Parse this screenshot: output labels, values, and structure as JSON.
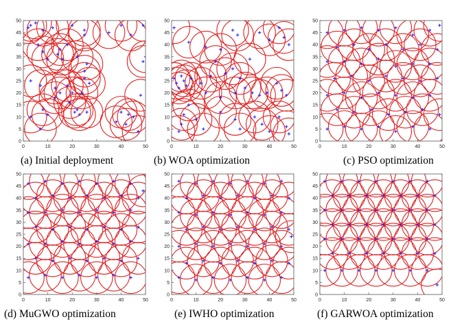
{
  "figure": {
    "node_color": "#1a1aff",
    "circle_color": "#e02020",
    "sensing_radius": 6.5
  },
  "chart_data": [
    {
      "type": "scatter",
      "caption": "(a) Initial deployment",
      "xlim": [
        0,
        50
      ],
      "ylim": [
        0,
        50
      ],
      "xticks": [
        "0",
        "10",
        "20",
        "30",
        "40",
        "50"
      ],
      "yticks": [
        "0",
        "5",
        "10",
        "15",
        "20",
        "25",
        "30",
        "35",
        "40",
        "45",
        "50"
      ],
      "points": [
        [
          2,
          47
        ],
        [
          3,
          48
        ],
        [
          5,
          49
        ],
        [
          8,
          46
        ],
        [
          12,
          47
        ],
        [
          20,
          48
        ],
        [
          25,
          46
        ],
        [
          25,
          44
        ],
        [
          35,
          45
        ],
        [
          40,
          48
        ],
        [
          44,
          44
        ],
        [
          49,
          48
        ],
        [
          6,
          40
        ],
        [
          8,
          37
        ],
        [
          10,
          34
        ],
        [
          14,
          36
        ],
        [
          15,
          38
        ],
        [
          16,
          34
        ],
        [
          18,
          40
        ],
        [
          22,
          35
        ],
        [
          26,
          32
        ],
        [
          25,
          29
        ],
        [
          25,
          26
        ],
        [
          27,
          24
        ],
        [
          3,
          25
        ],
        [
          7,
          23
        ],
        [
          13,
          22
        ],
        [
          15,
          20
        ],
        [
          18,
          23
        ],
        [
          20,
          20
        ],
        [
          24,
          20
        ],
        [
          13,
          18
        ],
        [
          19,
          16
        ],
        [
          8,
          13
        ],
        [
          3,
          10
        ],
        [
          7,
          5
        ],
        [
          10,
          11
        ],
        [
          21,
          12
        ],
        [
          22,
          13
        ],
        [
          23,
          11
        ],
        [
          26,
          12
        ],
        [
          38,
          8
        ],
        [
          40,
          12
        ],
        [
          42,
          7
        ],
        [
          43,
          11
        ],
        [
          45,
          10
        ],
        [
          47,
          4
        ],
        [
          48,
          19
        ],
        [
          49,
          33
        ],
        [
          50,
          35
        ]
      ]
    },
    {
      "type": "scatter",
      "caption": "(b) WOA optimization",
      "xlim": [
        0,
        50
      ],
      "ylim": [
        0,
        50
      ],
      "xticks": [
        "0",
        "10",
        "20",
        "30",
        "40",
        "50"
      ],
      "yticks": [
        "0",
        "5",
        "10",
        "15",
        "20",
        "25",
        "30",
        "35",
        "40",
        "45",
        "50"
      ],
      "points": [
        [
          1,
          47
        ],
        [
          7,
          41
        ],
        [
          14,
          39
        ],
        [
          20,
          38
        ],
        [
          25,
          46
        ],
        [
          27,
          44
        ],
        [
          36,
          45
        ],
        [
          40,
          42
        ],
        [
          44,
          47
        ],
        [
          46,
          43
        ],
        [
          48,
          40
        ],
        [
          1,
          26
        ],
        [
          2,
          24
        ],
        [
          3,
          22
        ],
        [
          4,
          27
        ],
        [
          5,
          25
        ],
        [
          6,
          23
        ],
        [
          8,
          26
        ],
        [
          12,
          24
        ],
        [
          16,
          27
        ],
        [
          22,
          28
        ],
        [
          25,
          30
        ],
        [
          28,
          26
        ],
        [
          30,
          22
        ],
        [
          33,
          20
        ],
        [
          36,
          19
        ],
        [
          39,
          20
        ],
        [
          43,
          24
        ],
        [
          45,
          21
        ],
        [
          47,
          19
        ],
        [
          26,
          20
        ],
        [
          20,
          18
        ],
        [
          14,
          20
        ],
        [
          7,
          15
        ],
        [
          5,
          11
        ],
        [
          4,
          7
        ],
        [
          3,
          4
        ],
        [
          10,
          9
        ],
        [
          13,
          5
        ],
        [
          20,
          12
        ],
        [
          26,
          9
        ],
        [
          28,
          5
        ],
        [
          34,
          10
        ],
        [
          37,
          7
        ],
        [
          40,
          4
        ],
        [
          44,
          10
        ],
        [
          47,
          6
        ],
        [
          48,
          3
        ],
        [
          18,
          33
        ],
        [
          32,
          34
        ]
      ]
    },
    {
      "type": "scatter",
      "caption": "(c) PSO optimization",
      "xlim": [
        0,
        50
      ],
      "ylim": [
        0,
        50
      ],
      "xticks": [
        "0",
        "10",
        "20",
        "30",
        "40",
        "50"
      ],
      "yticks": [
        "0",
        "5",
        "10",
        "15",
        "20",
        "25",
        "30",
        "35",
        "40",
        "45",
        "50"
      ],
      "points": [
        [
          3,
          45
        ],
        [
          10,
          46
        ],
        [
          17,
          47
        ],
        [
          24,
          46
        ],
        [
          31,
          47
        ],
        [
          38,
          44
        ],
        [
          45,
          46
        ],
        [
          49,
          48
        ],
        [
          7,
          39
        ],
        [
          14,
          40
        ],
        [
          20,
          38
        ],
        [
          27,
          40
        ],
        [
          34,
          38
        ],
        [
          41,
          40
        ],
        [
          48,
          38
        ],
        [
          3,
          33
        ],
        [
          10,
          33
        ],
        [
          17,
          32
        ],
        [
          24,
          34
        ],
        [
          31,
          31
        ],
        [
          38,
          32
        ],
        [
          45,
          32
        ],
        [
          6,
          26
        ],
        [
          13,
          27
        ],
        [
          20,
          25
        ],
        [
          27,
          27
        ],
        [
          34,
          26
        ],
        [
          41,
          25
        ],
        [
          48,
          26
        ],
        [
          3,
          19
        ],
        [
          10,
          20
        ],
        [
          17,
          18
        ],
        [
          24,
          20
        ],
        [
          31,
          19
        ],
        [
          38,
          18
        ],
        [
          45,
          19
        ],
        [
          7,
          13
        ],
        [
          14,
          12
        ],
        [
          21,
          13
        ],
        [
          28,
          11
        ],
        [
          35,
          12
        ],
        [
          42,
          13
        ],
        [
          49,
          11
        ],
        [
          3,
          5
        ],
        [
          10,
          6
        ],
        [
          17,
          5
        ],
        [
          24,
          6
        ],
        [
          31,
          4
        ],
        [
          38,
          6
        ],
        [
          45,
          5
        ]
      ]
    },
    {
      "type": "scatter",
      "caption": "(d) MuGWO optimization",
      "xlim": [
        0,
        50
      ],
      "ylim": [
        0,
        50
      ],
      "xticks": [
        "0",
        "10",
        "20",
        "30",
        "40",
        "50"
      ],
      "yticks": [
        "0",
        "5",
        "10",
        "15",
        "20",
        "25",
        "30",
        "35",
        "40",
        "45",
        "50"
      ],
      "points": [
        [
          2,
          46
        ],
        [
          9,
          47
        ],
        [
          16,
          46
        ],
        [
          23,
          47
        ],
        [
          30,
          46
        ],
        [
          37,
          47
        ],
        [
          44,
          46
        ],
        [
          49,
          43
        ],
        [
          5,
          40
        ],
        [
          12,
          41
        ],
        [
          19,
          40
        ],
        [
          26,
          41
        ],
        [
          33,
          40
        ],
        [
          40,
          41
        ],
        [
          47,
          40
        ],
        [
          2,
          34
        ],
        [
          9,
          34
        ],
        [
          16,
          35
        ],
        [
          23,
          34
        ],
        [
          30,
          35
        ],
        [
          37,
          34
        ],
        [
          44,
          35
        ],
        [
          5,
          28
        ],
        [
          12,
          27
        ],
        [
          19,
          28
        ],
        [
          26,
          27
        ],
        [
          33,
          28
        ],
        [
          40,
          27
        ],
        [
          47,
          28
        ],
        [
          2,
          21
        ],
        [
          9,
          21
        ],
        [
          16,
          22
        ],
        [
          23,
          21
        ],
        [
          30,
          22
        ],
        [
          37,
          21
        ],
        [
          44,
          22
        ],
        [
          5,
          15
        ],
        [
          12,
          14
        ],
        [
          19,
          15
        ],
        [
          26,
          14
        ],
        [
          33,
          15
        ],
        [
          40,
          14
        ],
        [
          47,
          15
        ],
        [
          2,
          7
        ],
        [
          9,
          8
        ],
        [
          16,
          7
        ],
        [
          23,
          8
        ],
        [
          30,
          7
        ],
        [
          37,
          8
        ],
        [
          44,
          7
        ]
      ]
    },
    {
      "type": "scatter",
      "caption": "(e) IWHO optimization",
      "xlim": [
        0,
        50
      ],
      "ylim": [
        0,
        50
      ],
      "xticks": [
        "0",
        "10",
        "20",
        "30",
        "40",
        "50"
      ],
      "yticks": [
        "0",
        "5",
        "10",
        "15",
        "20",
        "25",
        "30",
        "35",
        "40",
        "45",
        "50"
      ],
      "points": [
        [
          3,
          47
        ],
        [
          10,
          46
        ],
        [
          17,
          47
        ],
        [
          24,
          46
        ],
        [
          31,
          47
        ],
        [
          38,
          46
        ],
        [
          45,
          47
        ],
        [
          6,
          40
        ],
        [
          13,
          41
        ],
        [
          20,
          40
        ],
        [
          27,
          41
        ],
        [
          34,
          40
        ],
        [
          41,
          41
        ],
        [
          48,
          40
        ],
        [
          3,
          34
        ],
        [
          10,
          33
        ],
        [
          17,
          34
        ],
        [
          24,
          33
        ],
        [
          31,
          34
        ],
        [
          38,
          33
        ],
        [
          45,
          34
        ],
        [
          6,
          27
        ],
        [
          13,
          28
        ],
        [
          20,
          27
        ],
        [
          27,
          28
        ],
        [
          34,
          27
        ],
        [
          41,
          28
        ],
        [
          48,
          27
        ],
        [
          3,
          20
        ],
        [
          10,
          21
        ],
        [
          17,
          20
        ],
        [
          24,
          21
        ],
        [
          31,
          20
        ],
        [
          38,
          21
        ],
        [
          45,
          20
        ],
        [
          6,
          13
        ],
        [
          13,
          14
        ],
        [
          20,
          13
        ],
        [
          27,
          14
        ],
        [
          34,
          13
        ],
        [
          41,
          14
        ],
        [
          48,
          13
        ],
        [
          3,
          7
        ],
        [
          10,
          6
        ],
        [
          17,
          7
        ],
        [
          24,
          6
        ],
        [
          31,
          7
        ],
        [
          38,
          6
        ],
        [
          45,
          7
        ],
        [
          49,
          24
        ]
      ]
    },
    {
      "type": "scatter",
      "caption": "(f) GARWOA optimization",
      "xlim": [
        0,
        50
      ],
      "ylim": [
        0,
        50
      ],
      "xticks": [
        "0",
        "10",
        "20",
        "30",
        "40",
        "50"
      ],
      "yticks": [
        "0",
        "5",
        "10",
        "15",
        "20",
        "25",
        "30",
        "35",
        "40",
        "45",
        "50"
      ],
      "points": [
        [
          2,
          47
        ],
        [
          9,
          47
        ],
        [
          16,
          47
        ],
        [
          23,
          47
        ],
        [
          30,
          47
        ],
        [
          37,
          47
        ],
        [
          44,
          47
        ],
        [
          5,
          41
        ],
        [
          12,
          41
        ],
        [
          19,
          41
        ],
        [
          26,
          41
        ],
        [
          33,
          41
        ],
        [
          40,
          41
        ],
        [
          47,
          41
        ],
        [
          2,
          35
        ],
        [
          9,
          35
        ],
        [
          16,
          35
        ],
        [
          23,
          35
        ],
        [
          30,
          35
        ],
        [
          37,
          35
        ],
        [
          44,
          35
        ],
        [
          5,
          29
        ],
        [
          12,
          29
        ],
        [
          19,
          29
        ],
        [
          26,
          29
        ],
        [
          33,
          29
        ],
        [
          40,
          29
        ],
        [
          47,
          29
        ],
        [
          2,
          23
        ],
        [
          9,
          23
        ],
        [
          16,
          23
        ],
        [
          23,
          23
        ],
        [
          30,
          23
        ],
        [
          37,
          23
        ],
        [
          44,
          23
        ],
        [
          5,
          17
        ],
        [
          12,
          17
        ],
        [
          19,
          17
        ],
        [
          26,
          17
        ],
        [
          33,
          17
        ],
        [
          40,
          17
        ],
        [
          47,
          17
        ],
        [
          2,
          10
        ],
        [
          9,
          10
        ],
        [
          16,
          10
        ],
        [
          23,
          10
        ],
        [
          30,
          10
        ],
        [
          37,
          10
        ],
        [
          44,
          10
        ],
        [
          48,
          4
        ]
      ]
    }
  ]
}
